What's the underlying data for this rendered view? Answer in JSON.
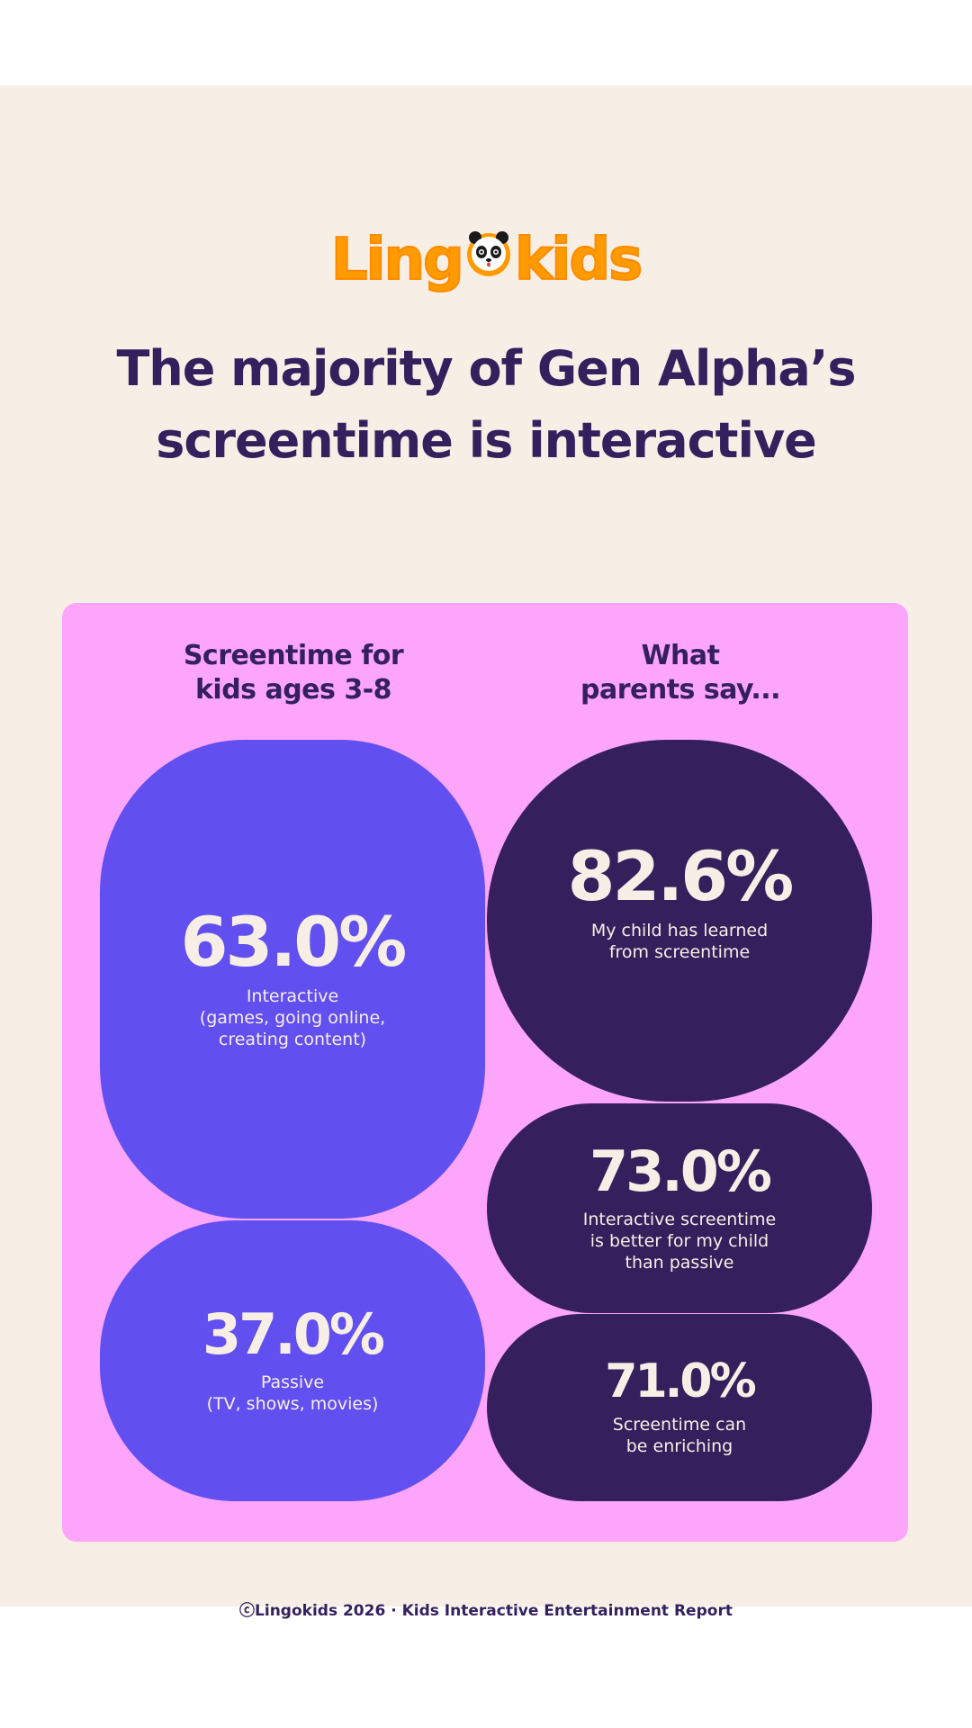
{
  "brand": {
    "logo_text_left": "Ling",
    "logo_text_right": "kids",
    "logo_mascot": "panda-icon",
    "logo_color": "#ff9b00"
  },
  "headline": {
    "line1": "The majority of Gen Alpha’s",
    "line2": "screentime is interactive"
  },
  "left_column": {
    "heading_line1": "Screentime for",
    "heading_line2": "kids ages 3-8",
    "stats": [
      {
        "value": "63.0%",
        "label_lines": [
          "Interactive",
          "(games, going online,",
          "creating content)"
        ]
      },
      {
        "value": "37.0%",
        "label_lines": [
          "Passive",
          "(TV, shows, movies)"
        ]
      }
    ]
  },
  "right_column": {
    "heading_line1": "What",
    "heading_line2": "parents say...",
    "stats": [
      {
        "value": "82.6%",
        "label_lines": [
          "My child has learned",
          "from screentime"
        ]
      },
      {
        "value": "73.0%",
        "label_lines": [
          "Interactive screentime",
          "is better for my child",
          "than passive"
        ]
      },
      {
        "value": "71.0%",
        "label_lines": [
          "Screentime can",
          "be enriching"
        ]
      }
    ]
  },
  "footer": {
    "text": "ⓒLingokids 2026 · Kids Interactive Entertainment Report"
  },
  "colors": {
    "background": "#f7efe6",
    "panel": "#fda4fb",
    "blue_blob": "#614ff0",
    "dark_blob": "#351f5c",
    "text_dark": "#35205e",
    "text_light": "#f7efe6"
  }
}
